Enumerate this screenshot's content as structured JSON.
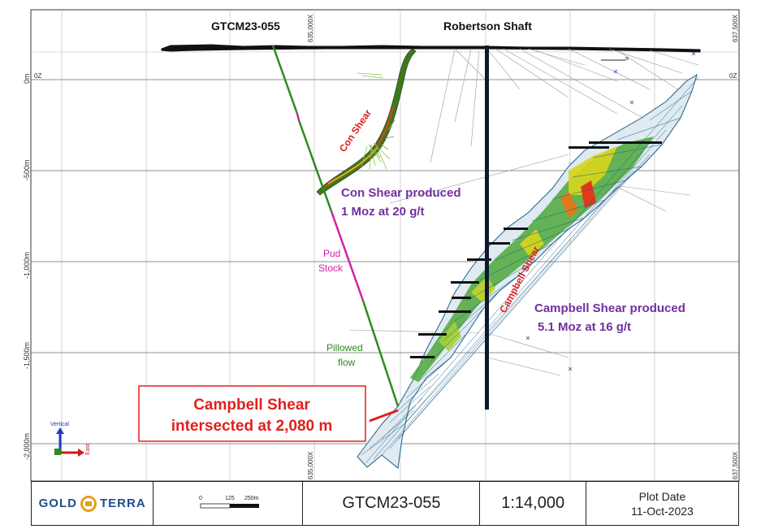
{
  "title_block": {
    "logo_left": "GOLD",
    "logo_right": "TERRA",
    "scale_bar_labels": [
      "0",
      "125",
      "250m"
    ],
    "hole_id": "GTCM23-055",
    "scale": "1:14,000",
    "plot_date_label": "Plot Date",
    "plot_date": "11-Oct-2023"
  },
  "section": {
    "hole_label": "GTCM23-055",
    "shaft_label": "Robertson Shaft",
    "easting_labels": [
      "635,000X",
      "637,500X"
    ],
    "elevation_labels": [
      "0m",
      "-500m",
      "-1,000m",
      "-1,500m",
      "-2,000m"
    ],
    "zero_labels": [
      "0Z",
      "0Z"
    ],
    "con_shear_label": "Con Shear",
    "con_shear_note": [
      "Con Shear produced",
      "1 Moz at 20 g/t"
    ],
    "campbell_shear_label": "Campbell Shear",
    "campbell_note": [
      "Campbell Shear produced",
      "5.1 Moz at 16 g/t"
    ],
    "pud_stock": [
      "Pud",
      "Stock"
    ],
    "pillowed_flow": [
      "Pillowed",
      "flow"
    ],
    "intersect_callout": [
      "Campbell Shear",
      "intersected at 2,080 m"
    ],
    "axis_vertical": "Vertical",
    "axis_east": "East"
  },
  "colors": {
    "drillhole_green": "#2e8b1e",
    "pud_magenta": "#d61fa7",
    "shaft": "#0d1a2e",
    "mesh": "#1f5f8a",
    "callout_red": "#e0201c",
    "note_purple": "#7030a0"
  }
}
